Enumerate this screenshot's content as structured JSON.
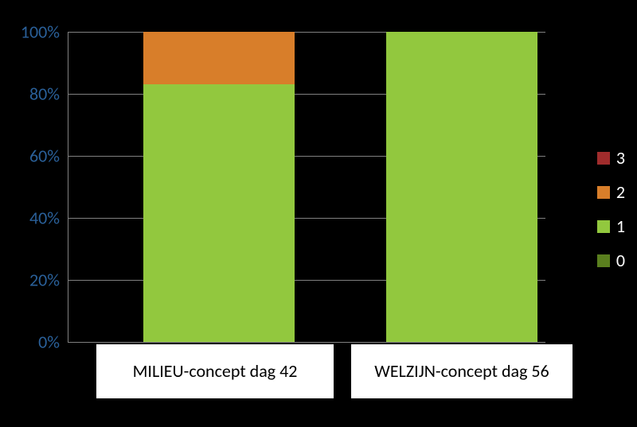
{
  "chart": {
    "type": "stacked-bar-100pct",
    "background_color": "#000000",
    "grid_color": "#808080",
    "y_axis": {
      "min": 0,
      "max": 100,
      "tick_step": 20,
      "ticks": [
        "0%",
        "20%",
        "40%",
        "60%",
        "80%",
        "100%"
      ],
      "tick_color": "#2a6099",
      "tick_fontsize": 22
    },
    "x_labels": {
      "fontsize": 22,
      "color": "#000000",
      "box_bg": "#ffffff",
      "box_border": "#000000"
    },
    "legend": {
      "position": "right",
      "label_color": "#ffffff",
      "label_fontsize": 22,
      "marker_size": 16,
      "items": [
        {
          "label": "3",
          "color": "#a02c2c"
        },
        {
          "label": "2",
          "color": "#d87e2a"
        },
        {
          "label": "1",
          "color": "#92c83e"
        },
        {
          "label": "0",
          "color": "#5a7f1e"
        }
      ]
    },
    "categories": [
      {
        "label": "MILIEU-concept dag 42",
        "segments": [
          {
            "series": "0",
            "value": 0,
            "color": "#5a7f1e"
          },
          {
            "series": "1",
            "value": 83,
            "color": "#92c83e"
          },
          {
            "series": "2",
            "value": 17,
            "color": "#d87e2a"
          },
          {
            "series": "3",
            "value": 0,
            "color": "#a02c2c"
          }
        ]
      },
      {
        "label": "WELZIJN-concept dag 56",
        "segments": [
          {
            "series": "0",
            "value": 0,
            "color": "#5a7f1e"
          },
          {
            "series": "1",
            "value": 100,
            "color": "#92c83e"
          },
          {
            "series": "2",
            "value": 0,
            "color": "#d87e2a"
          },
          {
            "series": "3",
            "value": 0,
            "color": "#a02c2c"
          }
        ]
      }
    ]
  }
}
